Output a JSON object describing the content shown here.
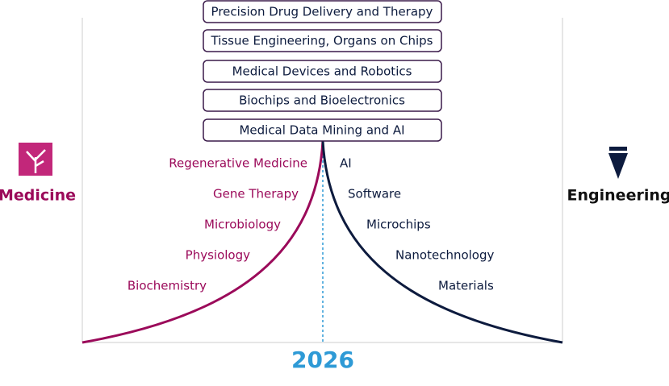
{
  "topics": [
    "Precision Drug Delivery and Therapy",
    "Tissue Engineering, Organs on Chips",
    "Medical Devices and Robotics",
    "Biochips and Bioelectronics",
    "Medical Data Mining and AI"
  ],
  "medicine": {
    "label": "Medicine",
    "fields": [
      "Regenerative Medicine",
      "Gene Therapy",
      "Microbiology",
      "Physiology",
      "Biochemistry"
    ]
  },
  "engineering": {
    "label": "Engineering",
    "fields": [
      "AI",
      "Software",
      "Microchips",
      "Nanotechnology",
      "Materials"
    ]
  },
  "year": "2026"
}
